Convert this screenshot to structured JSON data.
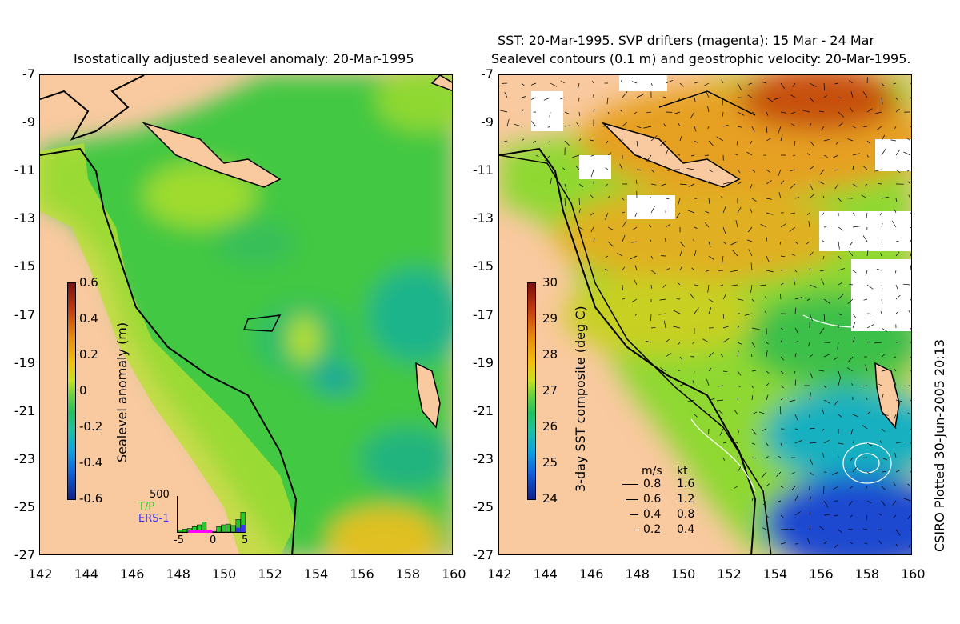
{
  "titles": {
    "left": "Isostatically adjusted sealevel anomaly: 20-Mar-1995",
    "right_line1": "SST: 20-Mar-1995. SVP drifters (magenta): 15 Mar - 24 Mar",
    "right_line2": "Sealevel contours (0.1 m) and geostrophic velocity: 20-Mar-1995."
  },
  "axes": {
    "x_ticks": [
      "142",
      "144",
      "146",
      "148",
      "150",
      "152",
      "154",
      "156",
      "158",
      "160"
    ],
    "y_ticks": [
      "-7",
      "-9",
      "-11",
      "-13",
      "-15",
      "-17",
      "-19",
      "-21",
      "-23",
      "-25",
      "-27"
    ]
  },
  "left_colorbar": {
    "label": "Sealevel anomaly (m)",
    "ticks": [
      "0.6",
      "0.4",
      "0.2",
      "0",
      "-0.2",
      "-0.4",
      "-0.6"
    ],
    "range": [
      -0.6,
      0.6
    ]
  },
  "right_colorbar": {
    "label": "3-day SST composite (deg C)",
    "ticks": [
      "30",
      "29",
      "28",
      "27",
      "26",
      "25",
      "24"
    ],
    "range": [
      24,
      30
    ]
  },
  "histogram": {
    "ymax_label": "500",
    "series": [
      "T/P",
      "ERS-1"
    ],
    "series_colors": [
      "#22cc22",
      "#3333ff"
    ],
    "x_ticks": [
      "-5",
      "0",
      "5"
    ],
    "values_tp": [
      0.05,
      0.08,
      0.1,
      0.15,
      0.2,
      0.28,
      0.05,
      0.02,
      0.15,
      0.2,
      0.22,
      0.18,
      0.35,
      0.55
    ],
    "values_ers": [
      0.0,
      0.0,
      0.0,
      0.0,
      0.0,
      0.0,
      0.0,
      0.0,
      0.0,
      0.0,
      0.0,
      0.0,
      0.12,
      0.2
    ]
  },
  "velocity_legend": {
    "header_ms": "m/s",
    "header_kt": "kt",
    "rows": [
      {
        "ms": "0.8",
        "kt": "1.6"
      },
      {
        "ms": "0.6",
        "kt": "1.2"
      },
      {
        "ms": "0.4",
        "kt": "0.8"
      },
      {
        "ms": "0.2",
        "kt": "0.4"
      }
    ]
  },
  "credit": "CSIRO Plotted 30-Jun-2005 20:13",
  "colors": {
    "land": "#f9c9a0",
    "coast": "#000000",
    "drifters": "#ff00ff",
    "cloud": "#ffffff"
  }
}
